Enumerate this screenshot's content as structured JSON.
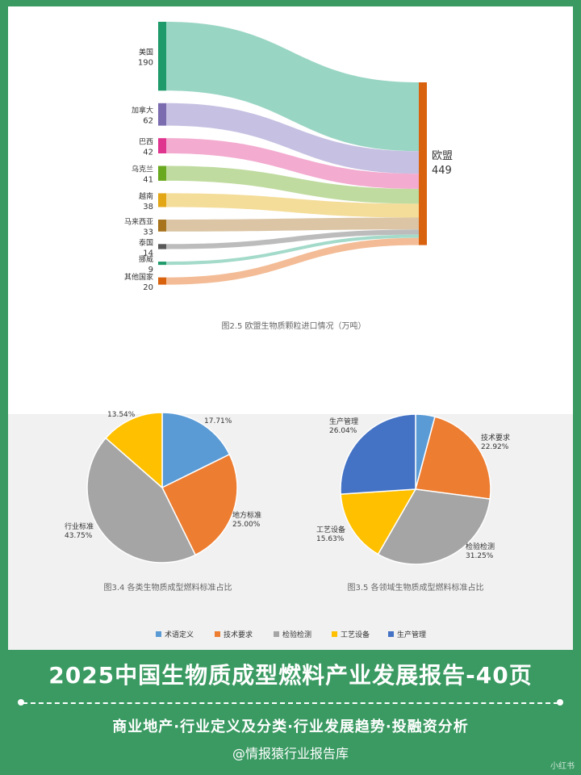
{
  "chart_data": [
    {
      "type": "sankey",
      "title": "图2.5 欧盟生物质颗粒进口情况（万吨）",
      "target": {
        "name": "欧盟",
        "value": 449,
        "color": "#d9620f"
      },
      "sources": [
        {
          "name": "美国",
          "value": 190,
          "color": "#1f9a6a",
          "flow": "#94d3c0"
        },
        {
          "name": "加拿大",
          "value": 62,
          "color": "#7b6cb0",
          "flow": "#c3bde0"
        },
        {
          "name": "巴西",
          "value": 42,
          "color": "#e0358f",
          "flow": "#f2a6cd"
        },
        {
          "name": "乌克兰",
          "value": 41,
          "color": "#69a91f",
          "flow": "#bcd99a"
        },
        {
          "name": "越南",
          "value": 38,
          "color": "#e3a615",
          "flow": "#f3da93"
        },
        {
          "name": "马来西亚",
          "value": 33,
          "color": "#a7741d",
          "flow": "#d9c2a0"
        },
        {
          "name": "泰国",
          "value": 14,
          "color": "#585858",
          "flow": "#b8b8b8"
        },
        {
          "name": "挪威",
          "value": 9,
          "color": "#1f9a6a",
          "flow": "#9ed8c6"
        },
        {
          "name": "其他国家",
          "value": 20,
          "color": "#d9620f",
          "flow": "#f2b890"
        }
      ]
    },
    {
      "type": "pie",
      "title": "图3.4 各类生物质成型燃料标准占比",
      "slices": [
        {
          "name": "术语定义",
          "value": 17.71,
          "label": "17.71%",
          "show_name": false
        },
        {
          "name": "地方标准",
          "value": 25.0,
          "label": "25.00%",
          "show_name": true
        },
        {
          "name": "行业标准",
          "value": 43.75,
          "label": "43.75%",
          "show_name": true
        },
        {
          "name": "",
          "value": 13.54,
          "label": "13.54%",
          "show_name": false
        }
      ],
      "colors": [
        "#5b9bd5",
        "#ed7d31",
        "#a5a5a5",
        "#ffc000"
      ]
    },
    {
      "type": "pie",
      "title": "图3.5 各领域生物质成型燃料标准占比",
      "slices": [
        {
          "name": "术语定义",
          "value": 4.16,
          "label": "",
          "show_name": false
        },
        {
          "name": "技术要求",
          "value": 22.92,
          "label": "22.92%",
          "show_name": true
        },
        {
          "name": "检验检测",
          "value": 31.25,
          "label": "31.25%",
          "show_name": true
        },
        {
          "name": "工艺设备",
          "value": 15.63,
          "label": "15.63%",
          "show_name": true
        },
        {
          "name": "生产管理",
          "value": 26.04,
          "label": "26.04%",
          "show_name": true
        }
      ],
      "colors": [
        "#5b9bd5",
        "#ed7d31",
        "#a5a5a5",
        "#ffc000",
        "#4472c4"
      ]
    }
  ],
  "legend": [
    {
      "name": "术语定义",
      "color": "#5b9bd5"
    },
    {
      "name": "技术要求",
      "color": "#ed7d31"
    },
    {
      "name": "检验检测",
      "color": "#a5a5a5"
    },
    {
      "name": "工艺设备",
      "color": "#ffc000"
    },
    {
      "name": "生产管理",
      "color": "#4472c4"
    }
  ],
  "banner": {
    "title": "2025中国生物质成型燃料产业发展报告-40页",
    "subtitle": "商业地产·行业定义及分类·行业发展趋势·投融资分析",
    "author": "@情报猿行业报告库",
    "watermark": "小红书"
  }
}
